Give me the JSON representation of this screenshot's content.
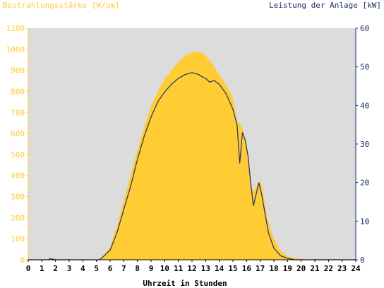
{
  "chart_data": {
    "type": "area",
    "left_axis_label": "Bestrahlungsstärke [W/qm]",
    "right_axis_label": "Leistung der Anlage [kW]",
    "xlabel": "Uhrzeit in Stunden",
    "xlim": [
      0,
      24
    ],
    "x_ticks": [
      "0",
      "1",
      "2",
      "3",
      "4",
      "5",
      "6",
      "7",
      "8",
      "9",
      "10",
      "11",
      "12",
      "13",
      "14",
      "15",
      "16",
      "17",
      "18",
      "19",
      "20",
      "21",
      "22",
      "23",
      "24"
    ],
    "left_ylim": [
      0,
      1100
    ],
    "left_ticks": [
      "0",
      "100",
      "200",
      "300",
      "400",
      "500",
      "600",
      "700",
      "800",
      "900",
      "1000",
      "1100"
    ],
    "right_ylim": [
      0,
      60
    ],
    "right_ticks": [
      "0",
      "10",
      "20",
      "30",
      "40",
      "50",
      "60"
    ],
    "grid": false,
    "colors": {
      "irradiance": "#ffcc33",
      "power": "#1e2f6e",
      "plot_background": "#dcdcdc"
    },
    "series": [
      {
        "axis": "left",
        "style": "area",
        "x": [
          0,
          5.2,
          5.5,
          6,
          6.5,
          7,
          7.5,
          8,
          8.5,
          9,
          9.5,
          10,
          10.5,
          11,
          11.5,
          12,
          12.5,
          13,
          13.5,
          14,
          14.5,
          15,
          15.3,
          15.6,
          15.8,
          16,
          16.2,
          16.4,
          16.6,
          16.8,
          17,
          17.2,
          17.5,
          18,
          18.5,
          19,
          19.5,
          20,
          20.5,
          24
        ],
        "y": [
          0,
          0,
          20,
          60,
          160,
          280,
          400,
          520,
          630,
          730,
          800,
          860,
          900,
          940,
          970,
          985,
          990,
          970,
          930,
          880,
          830,
          770,
          660,
          640,
          600,
          550,
          460,
          330,
          330,
          360,
          380,
          330,
          200,
          100,
          40,
          15,
          10,
          5,
          0,
          0
        ]
      },
      {
        "axis": "right",
        "style": "line",
        "x": [
          0,
          1.5,
          1.6,
          2,
          5.2,
          5.5,
          6,
          6.5,
          7,
          7.5,
          8,
          8.5,
          9,
          9.5,
          10,
          10.5,
          11,
          11.5,
          12,
          12.5,
          12.7,
          13,
          13.3,
          13.6,
          14,
          14.5,
          15,
          15.3,
          15.5,
          15.7,
          15.9,
          16.1,
          16.3,
          16.5,
          16.7,
          16.9,
          17.1,
          17.3,
          17.6,
          18,
          18.5,
          19,
          19.5,
          20,
          24
        ],
        "y": [
          0,
          0,
          0.3,
          0,
          0,
          0.8,
          2.5,
          7,
          13,
          19,
          26,
          32,
          37,
          41,
          43.5,
          45.5,
          47,
          48,
          48.5,
          48,
          47.5,
          47,
          46,
          46.5,
          45.5,
          43,
          39,
          35,
          25,
          33,
          31,
          27,
          20,
          14,
          17,
          20,
          17,
          13,
          7,
          3,
          1,
          0.4,
          0,
          0,
          0
        ]
      }
    ]
  }
}
